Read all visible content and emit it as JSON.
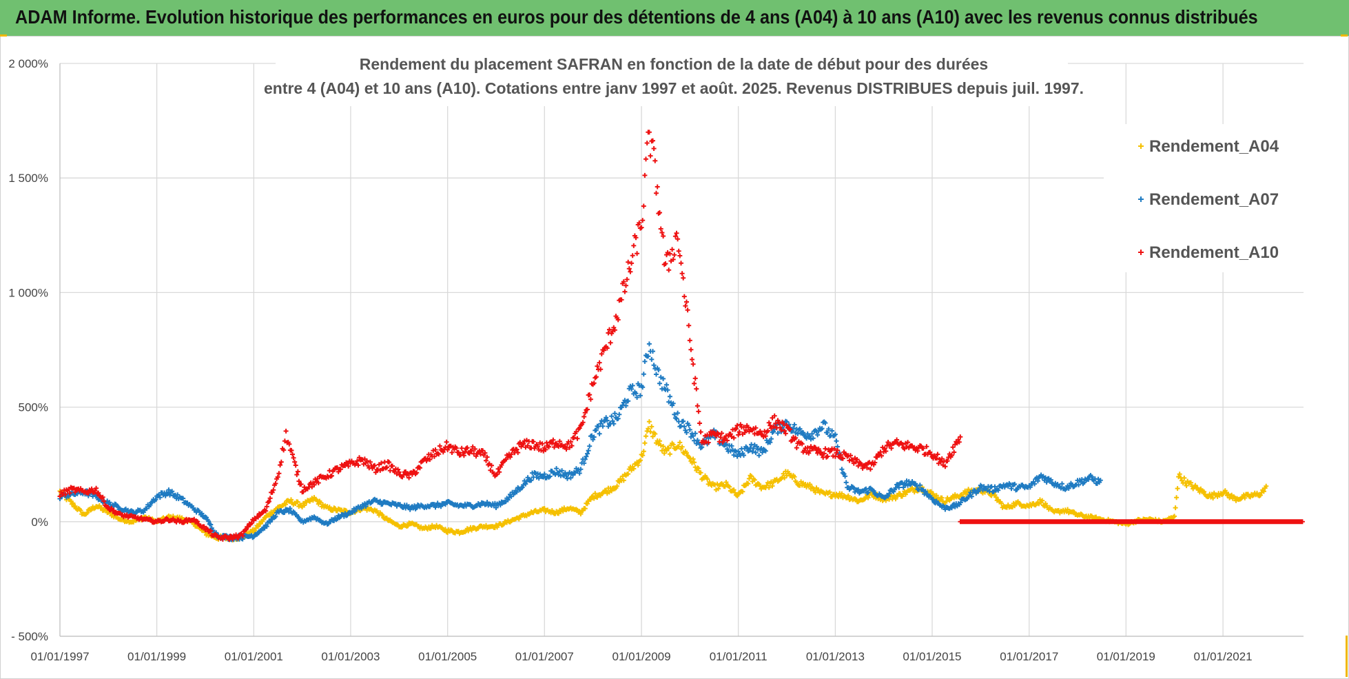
{
  "header": {
    "title": "ADAM Informe. Evolution historique des performances en euros pour des détentions de 4 ans (A04) à 10 ans (A10) avec les revenus connus distribués"
  },
  "colors": {
    "header_bg": "#70c070",
    "A04": "#f5c000",
    "A07": "#1f7bc2",
    "A10": "#ee1111"
  },
  "chart_data": {
    "type": "scatter",
    "title_lines": [
      "Rendement du placement SAFRAN en fonction de la date de début pour des durées",
      "entre 4 (A04) et 10 ans (A10).  Cotations entre janv 1997 et août. 2025. Revenus DISTRIBUES depuis juil. 1997."
    ],
    "x_range": [
      "01/01/1997",
      "31/08/2022"
    ],
    "ylim": [
      -500,
      2000
    ],
    "y_ticks": [
      {
        "value": 2000,
        "label": "2 000%"
      },
      {
        "value": 1500,
        "label": "1 500%"
      },
      {
        "value": 1000,
        "label": "1 000%"
      },
      {
        "value": 500,
        "label": "500%"
      },
      {
        "value": 0,
        "label": "0%"
      },
      {
        "value": -500,
        "label": "- 500%"
      }
    ],
    "x_ticks": [
      "01/01/1997",
      "01/01/1999",
      "01/01/2001",
      "01/01/2003",
      "01/01/2005",
      "01/01/2007",
      "01/01/2009",
      "01/01/2011",
      "01/01/2013",
      "01/01/2015",
      "01/01/2017",
      "01/01/2019",
      "01/01/2021"
    ],
    "grid": true,
    "marker": "+",
    "legend_position": "top-right",
    "series": [
      {
        "name": "Rendement_A04",
        "points": [
          [
            "01/01/1997",
            130
          ],
          [
            "01/04/1997",
            80
          ],
          [
            "01/07/1997",
            30
          ],
          [
            "01/10/1997",
            70
          ],
          [
            "01/01/1998",
            40
          ],
          [
            "01/04/1998",
            10
          ],
          [
            "01/07/1998",
            0
          ],
          [
            "01/10/1998",
            20
          ],
          [
            "01/01/1999",
            0
          ],
          [
            "01/04/1999",
            20
          ],
          [
            "01/07/1999",
            15
          ],
          [
            "01/10/1999",
            -5
          ],
          [
            "01/01/2000",
            -50
          ],
          [
            "01/04/2000",
            -70
          ],
          [
            "01/07/2000",
            -72
          ],
          [
            "01/10/2000",
            -68
          ],
          [
            "01/01/2001",
            -40
          ],
          [
            "01/04/2001",
            20
          ],
          [
            "01/07/2001",
            60
          ],
          [
            "01/10/2001",
            90
          ],
          [
            "01/01/2002",
            70
          ],
          [
            "01/04/2002",
            100
          ],
          [
            "01/07/2002",
            60
          ],
          [
            "01/10/2002",
            50
          ],
          [
            "01/01/2003",
            40
          ],
          [
            "01/04/2003",
            60
          ],
          [
            "01/07/2003",
            50
          ],
          [
            "01/10/2003",
            10
          ],
          [
            "01/01/2004",
            -20
          ],
          [
            "01/04/2004",
            -10
          ],
          [
            "01/07/2004",
            -30
          ],
          [
            "01/10/2004",
            -20
          ],
          [
            "01/01/2005",
            -40
          ],
          [
            "01/04/2005",
            -45
          ],
          [
            "01/07/2005",
            -30
          ],
          [
            "01/10/2005",
            -20
          ],
          [
            "01/01/2006",
            -20
          ],
          [
            "01/04/2006",
            0
          ],
          [
            "01/07/2006",
            20
          ],
          [
            "01/10/2006",
            40
          ],
          [
            "01/01/2007",
            50
          ],
          [
            "01/04/2007",
            40
          ],
          [
            "01/07/2007",
            60
          ],
          [
            "01/10/2007",
            40
          ],
          [
            "01/01/2008",
            110
          ],
          [
            "01/04/2008",
            130
          ],
          [
            "01/07/2008",
            160
          ],
          [
            "01/10/2008",
            220
          ],
          [
            "01/01/2009",
            280
          ],
          [
            "01/03/2009",
            420
          ],
          [
            "01/05/2009",
            350
          ],
          [
            "01/07/2009",
            300
          ],
          [
            "01/10/2009",
            340
          ],
          [
            "01/01/2010",
            280
          ],
          [
            "01/04/2010",
            200
          ],
          [
            "01/07/2010",
            150
          ],
          [
            "01/10/2010",
            160
          ],
          [
            "01/01/2011",
            110
          ],
          [
            "01/04/2011",
            190
          ],
          [
            "01/07/2011",
            150
          ],
          [
            "01/10/2011",
            170
          ],
          [
            "01/01/2012",
            210
          ],
          [
            "01/04/2012",
            170
          ],
          [
            "01/07/2012",
            150
          ],
          [
            "01/10/2012",
            120
          ],
          [
            "01/01/2013",
            120
          ],
          [
            "01/04/2013",
            110
          ],
          [
            "01/07/2013",
            90
          ],
          [
            "01/10/2013",
            120
          ],
          [
            "01/01/2014",
            100
          ],
          [
            "01/04/2014",
            110
          ],
          [
            "01/07/2014",
            130
          ],
          [
            "01/10/2014",
            150
          ],
          [
            "01/01/2015",
            120
          ],
          [
            "01/04/2015",
            90
          ],
          [
            "01/07/2015",
            110
          ],
          [
            "01/10/2015",
            130
          ],
          [
            "01/01/2016",
            140
          ],
          [
            "01/04/2016",
            120
          ],
          [
            "01/07/2016",
            60
          ],
          [
            "01/10/2016",
            80
          ],
          [
            "01/01/2017",
            70
          ],
          [
            "01/04/2017",
            90
          ],
          [
            "01/07/2017",
            40
          ],
          [
            "01/10/2017",
            50
          ],
          [
            "01/01/2018",
            30
          ],
          [
            "01/04/2018",
            20
          ],
          [
            "01/07/2018",
            10
          ],
          [
            "01/10/2018",
            0
          ],
          [
            "01/01/2019",
            -10
          ],
          [
            "01/04/2019",
            5
          ],
          [
            "01/07/2019",
            10
          ],
          [
            "01/10/2019",
            0
          ],
          [
            "01/01/2020",
            20
          ],
          [
            "01/02/2020",
            200
          ],
          [
            "01/04/2020",
            170
          ],
          [
            "01/07/2020",
            140
          ],
          [
            "01/10/2020",
            110
          ],
          [
            "01/01/2021",
            130
          ],
          [
            "01/04/2021",
            100
          ],
          [
            "01/07/2021",
            110
          ],
          [
            "01/10/2021",
            120
          ],
          [
            "01/12/2021",
            150
          ]
        ]
      },
      {
        "name": "Rendement_A07",
        "points": [
          [
            "01/01/1997",
            110
          ],
          [
            "01/04/1997",
            120
          ],
          [
            "01/07/1997",
            130
          ],
          [
            "01/10/1997",
            110
          ],
          [
            "01/01/1998",
            80
          ],
          [
            "01/04/1998",
            60
          ],
          [
            "01/07/1998",
            40
          ],
          [
            "01/10/1998",
            50
          ],
          [
            "01/01/1999",
            110
          ],
          [
            "01/04/1999",
            130
          ],
          [
            "01/07/1999",
            100
          ],
          [
            "01/10/1999",
            60
          ],
          [
            "01/01/2000",
            20
          ],
          [
            "01/04/2000",
            -60
          ],
          [
            "01/07/2000",
            -70
          ],
          [
            "01/10/2000",
            -68
          ],
          [
            "01/01/2001",
            -60
          ],
          [
            "01/04/2001",
            -20
          ],
          [
            "01/07/2001",
            40
          ],
          [
            "01/10/2001",
            50
          ],
          [
            "01/01/2002",
            0
          ],
          [
            "01/04/2002",
            20
          ],
          [
            "01/07/2002",
            -10
          ],
          [
            "01/10/2002",
            20
          ],
          [
            "01/01/2003",
            40
          ],
          [
            "01/04/2003",
            70
          ],
          [
            "01/07/2003",
            90
          ],
          [
            "01/10/2003",
            80
          ],
          [
            "01/01/2004",
            70
          ],
          [
            "01/04/2004",
            60
          ],
          [
            "01/07/2004",
            70
          ],
          [
            "01/10/2004",
            70
          ],
          [
            "01/01/2005",
            80
          ],
          [
            "01/04/2005",
            70
          ],
          [
            "01/07/2005",
            70
          ],
          [
            "01/10/2005",
            80
          ],
          [
            "01/01/2006",
            70
          ],
          [
            "01/04/2006",
            100
          ],
          [
            "01/07/2006",
            150
          ],
          [
            "01/10/2006",
            200
          ],
          [
            "01/01/2007",
            200
          ],
          [
            "01/04/2007",
            220
          ],
          [
            "01/07/2007",
            200
          ],
          [
            "01/10/2007",
            230
          ],
          [
            "01/01/2008",
            380
          ],
          [
            "01/04/2008",
            430
          ],
          [
            "01/07/2008",
            450
          ],
          [
            "01/10/2008",
            560
          ],
          [
            "01/01/2009",
            580
          ],
          [
            "01/03/2009",
            780
          ],
          [
            "01/05/2009",
            650
          ],
          [
            "01/07/2009",
            580
          ],
          [
            "01/10/2009",
            450
          ],
          [
            "01/01/2010",
            400
          ],
          [
            "01/04/2010",
            330
          ],
          [
            "01/07/2010",
            380
          ],
          [
            "01/10/2010",
            330
          ],
          [
            "01/01/2011",
            290
          ],
          [
            "01/04/2011",
            330
          ],
          [
            "01/07/2011",
            300
          ],
          [
            "01/10/2011",
            400
          ],
          [
            "01/01/2012",
            430
          ],
          [
            "01/04/2012",
            390
          ],
          [
            "01/07/2012",
            380
          ],
          [
            "01/10/2012",
            420
          ],
          [
            "01/01/2013",
            360
          ],
          [
            "01/04/2013",
            150
          ],
          [
            "01/07/2013",
            130
          ],
          [
            "01/10/2013",
            140
          ],
          [
            "01/01/2014",
            100
          ],
          [
            "01/04/2014",
            150
          ],
          [
            "01/07/2014",
            170
          ],
          [
            "01/10/2014",
            150
          ],
          [
            "01/01/2015",
            100
          ],
          [
            "01/04/2015",
            60
          ],
          [
            "01/07/2015",
            70
          ],
          [
            "01/10/2015",
            110
          ],
          [
            "01/01/2016",
            150
          ],
          [
            "01/04/2016",
            140
          ],
          [
            "01/07/2016",
            160
          ],
          [
            "01/10/2016",
            150
          ],
          [
            "01/01/2017",
            150
          ],
          [
            "01/04/2017",
            200
          ],
          [
            "01/07/2017",
            170
          ],
          [
            "01/10/2017",
            150
          ],
          [
            "01/01/2018",
            170
          ],
          [
            "01/04/2018",
            190
          ],
          [
            "01/07/2018",
            170
          ]
        ]
      },
      {
        "name": "Rendement_A10",
        "points": [
          [
            "01/01/1997",
            120
          ],
          [
            "01/04/1997",
            140
          ],
          [
            "01/07/1997",
            130
          ],
          [
            "01/10/1997",
            140
          ],
          [
            "01/01/1998",
            60
          ],
          [
            "01/04/1998",
            30
          ],
          [
            "01/07/1998",
            20
          ],
          [
            "01/10/1998",
            10
          ],
          [
            "01/01/1999",
            0
          ],
          [
            "01/04/1999",
            10
          ],
          [
            "01/07/1999",
            0
          ],
          [
            "01/10/1999",
            10
          ],
          [
            "01/01/2000",
            -30
          ],
          [
            "01/04/2000",
            -70
          ],
          [
            "01/07/2000",
            -70
          ],
          [
            "01/10/2000",
            -60
          ],
          [
            "01/01/2001",
            10
          ],
          [
            "01/04/2001",
            50
          ],
          [
            "01/07/2001",
            200
          ],
          [
            "01/09/2001",
            380
          ],
          [
            "01/01/2002",
            140
          ],
          [
            "01/04/2002",
            170
          ],
          [
            "01/07/2002",
            200
          ],
          [
            "01/10/2002",
            230
          ],
          [
            "01/01/2003",
            250
          ],
          [
            "01/04/2003",
            270
          ],
          [
            "01/07/2003",
            230
          ],
          [
            "01/10/2003",
            250
          ],
          [
            "01/01/2004",
            210
          ],
          [
            "01/04/2004",
            200
          ],
          [
            "01/07/2004",
            260
          ],
          [
            "01/10/2004",
            300
          ],
          [
            "01/01/2005",
            330
          ],
          [
            "01/04/2005",
            300
          ],
          [
            "01/07/2005",
            310
          ],
          [
            "01/10/2005",
            290
          ],
          [
            "01/01/2006",
            200
          ],
          [
            "01/04/2006",
            280
          ],
          [
            "01/07/2006",
            330
          ],
          [
            "01/10/2006",
            340
          ],
          [
            "01/01/2007",
            320
          ],
          [
            "01/04/2007",
            350
          ],
          [
            "01/07/2007",
            330
          ],
          [
            "01/10/2007",
            400
          ],
          [
            "01/01/2008",
            600
          ],
          [
            "01/04/2008",
            750
          ],
          [
            "01/07/2008",
            900
          ],
          [
            "01/10/2008",
            1100
          ],
          [
            "01/01/2009",
            1300
          ],
          [
            "01/03/2009",
            1700
          ],
          [
            "01/05/2009",
            1450
          ],
          [
            "01/07/2009",
            1100
          ],
          [
            "01/10/2009",
            1250
          ],
          [
            "01/01/2010",
            800
          ],
          [
            "01/04/2010",
            350
          ],
          [
            "01/07/2010",
            380
          ],
          [
            "01/10/2010",
            360
          ],
          [
            "01/01/2011",
            400
          ],
          [
            "01/04/2011",
            410
          ],
          [
            "01/07/2011",
            380
          ],
          [
            "01/10/2011",
            440
          ],
          [
            "01/01/2012",
            400
          ],
          [
            "01/04/2012",
            330
          ],
          [
            "01/07/2012",
            310
          ],
          [
            "01/10/2012",
            300
          ],
          [
            "01/01/2013",
            300
          ],
          [
            "01/04/2013",
            280
          ],
          [
            "01/07/2013",
            250
          ],
          [
            "01/10/2013",
            240
          ],
          [
            "01/01/2014",
            320
          ],
          [
            "01/04/2014",
            340
          ],
          [
            "01/07/2014",
            330
          ],
          [
            "01/10/2014",
            320
          ],
          [
            "01/01/2015",
            300
          ],
          [
            "01/04/2015",
            250
          ],
          [
            "01/07/2015",
            340
          ],
          [
            "01/08/2015",
            370
          ],
          [
            "02/08/2015",
            0
          ],
          [
            "01/01/2016",
            0
          ],
          [
            "01/01/2018",
            0
          ],
          [
            "01/01/2020",
            0
          ],
          [
            "01/01/2022",
            0
          ],
          [
            "31/08/2022",
            0
          ]
        ]
      }
    ]
  }
}
